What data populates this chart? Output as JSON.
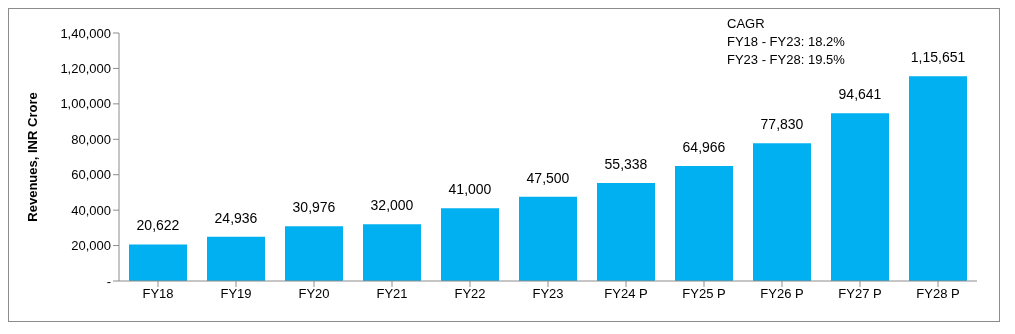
{
  "chart_data": {
    "type": "bar",
    "ylabel": "Revenues, INR Crore",
    "categories": [
      "FY18",
      "FY19",
      "FY20",
      "FY21",
      "FY22",
      "FY23",
      "FY24 P",
      "FY25 P",
      "FY26 P",
      "FY27 P",
      "FY28 P"
    ],
    "values": [
      20622,
      24936,
      30976,
      32000,
      41000,
      47500,
      55338,
      64966,
      77830,
      94641,
      115651
    ],
    "value_labels": [
      "20,622",
      "24,936",
      "30,976",
      "32,000",
      "41,000",
      "47,500",
      "55,338",
      "64,966",
      "77,830",
      "94,641",
      "1,15,651"
    ],
    "color": "#00b0f0",
    "ylim": [
      0,
      140000
    ],
    "yticks": [
      {
        "value": 0,
        "label": "-"
      },
      {
        "value": 20000,
        "label": "20,000"
      },
      {
        "value": 40000,
        "label": "40,000"
      },
      {
        "value": 60000,
        "label": "60,000"
      },
      {
        "value": 80000,
        "label": "80,000"
      },
      {
        "value": 100000,
        "label": "1,00,000"
      },
      {
        "value": 120000,
        "label": "1,20,000"
      },
      {
        "value": 140000,
        "label": "1,40,000"
      }
    ],
    "grid": false,
    "annotations": [
      "CAGR",
      "FY18 - FY23: 18.2%",
      "FY23 - FY28: 19.5%"
    ]
  }
}
